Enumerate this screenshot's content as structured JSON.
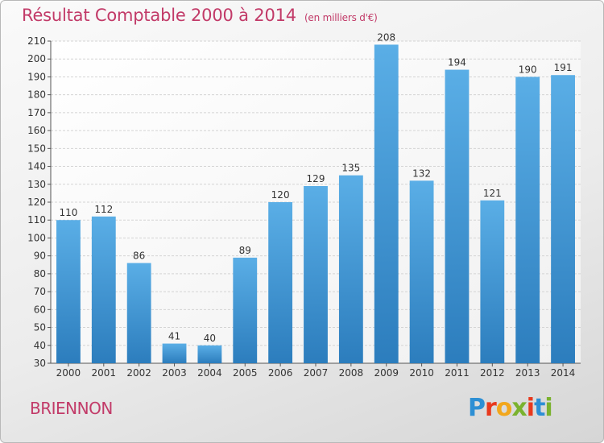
{
  "header": {
    "title": "Résultat Comptable 2000 à 2014",
    "subtitle": "(en milliers d'€)"
  },
  "footer": {
    "commune": "BRIENNON",
    "logo_letters": [
      "P",
      "r",
      "o",
      "x",
      "i",
      "t",
      "i"
    ],
    "logo_colors": [
      "#2d8fd4",
      "#e8391d",
      "#f2a71d",
      "#7ab22e",
      "#e8391d",
      "#2d8fd4",
      "#7ab22e"
    ]
  },
  "chart_data": {
    "type": "bar",
    "title": "Résultat Comptable 2000 à 2014",
    "subtitle": "(en milliers d'€)",
    "categories": [
      "2000",
      "2001",
      "2002",
      "2003",
      "2004",
      "2005",
      "2006",
      "2007",
      "2008",
      "2009",
      "2010",
      "2011",
      "2012",
      "2013",
      "2014"
    ],
    "values": [
      110,
      112,
      86,
      41,
      40,
      89,
      120,
      129,
      135,
      208,
      132,
      194,
      121,
      190,
      191
    ],
    "ylim": [
      30,
      210
    ],
    "ytick_step": 10,
    "grid": true,
    "bar_color_light": "#5aaee6",
    "bar_color_dark": "#2c7dbd"
  }
}
